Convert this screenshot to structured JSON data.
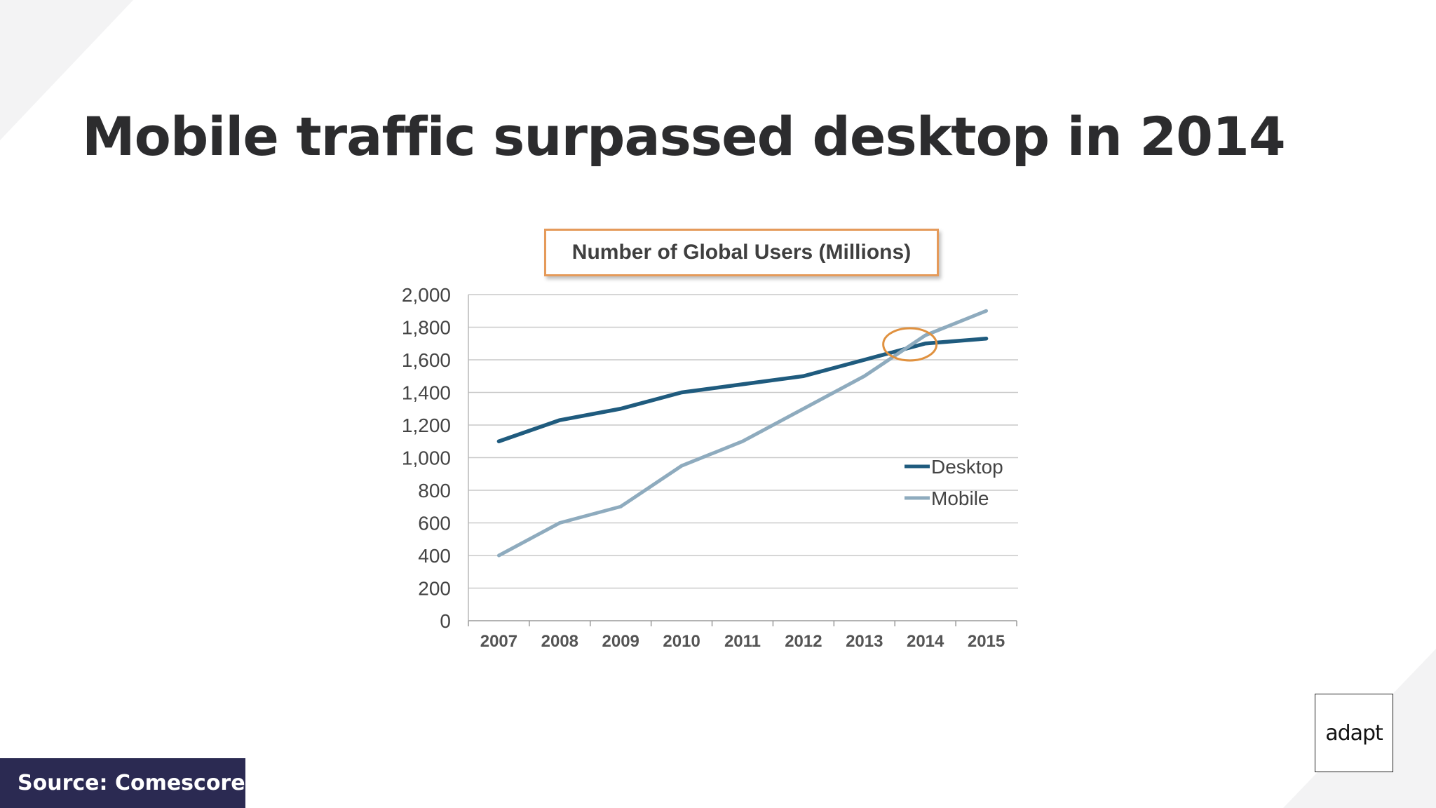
{
  "slide": {
    "title": "Mobile traffic surpassed desktop in 2014",
    "source": "Source: Comescore",
    "logo_text": "adapt"
  },
  "colors": {
    "desktop": "#1f5b7e",
    "mobile": "#8eabbe",
    "highlight": "#e0913f",
    "source_bg": "#2b2a52",
    "title": "#2c2c2e"
  },
  "chart_data": {
    "type": "line",
    "title": "Number of Global Users (Millions)",
    "categories": [
      "2007",
      "2008",
      "2009",
      "2010",
      "2011",
      "2012",
      "2013",
      "2014",
      "2015"
    ],
    "series": [
      {
        "name": "Desktop",
        "values": [
          1100,
          1230,
          1300,
          1400,
          1450,
          1500,
          1600,
          1700,
          1730
        ]
      },
      {
        "name": "Mobile",
        "values": [
          400,
          600,
          700,
          950,
          1100,
          1300,
          1500,
          1750,
          1900
        ]
      }
    ],
    "ylim": [
      0,
      2000
    ],
    "yticks": [
      "0",
      "200",
      "400",
      "600",
      "800",
      "1,000",
      "1,200",
      "1,400",
      "1,600",
      "1,800",
      "2,000"
    ],
    "grid": true,
    "legend_position": "right",
    "highlight_category": "2014"
  }
}
